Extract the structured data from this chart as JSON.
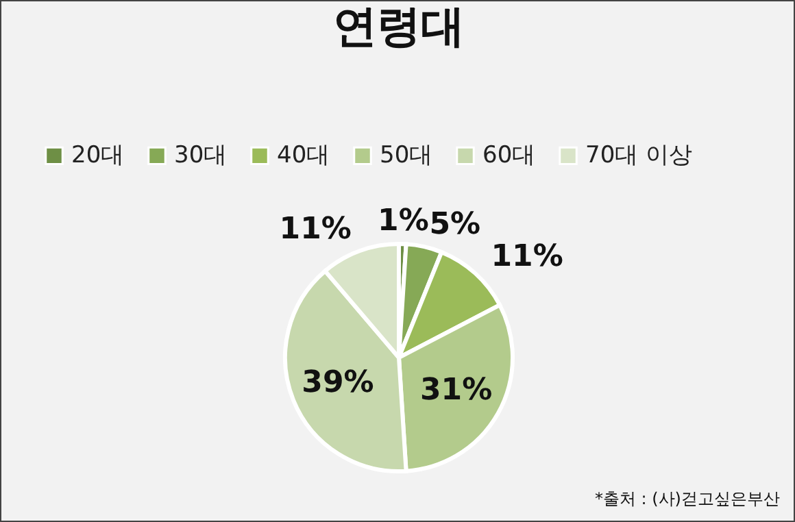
{
  "chart_data": {
    "type": "pie",
    "title": "연령대",
    "categories": [
      "20대",
      "30대",
      "40대",
      "50대",
      "60대",
      "70대 이상"
    ],
    "values": [
      1,
      5,
      11,
      31,
      39,
      11
    ],
    "colors": [
      "#6e8f45",
      "#86a956",
      "#9bbb59",
      "#b3cb8c",
      "#c7d8ad",
      "#d9e4c8"
    ],
    "value_labels": [
      "1%",
      "5%",
      "11%",
      "31%",
      "39%",
      "11%"
    ],
    "legend": "top",
    "annotations": [
      "*출처 : (사)걷고싶은부산"
    ]
  }
}
